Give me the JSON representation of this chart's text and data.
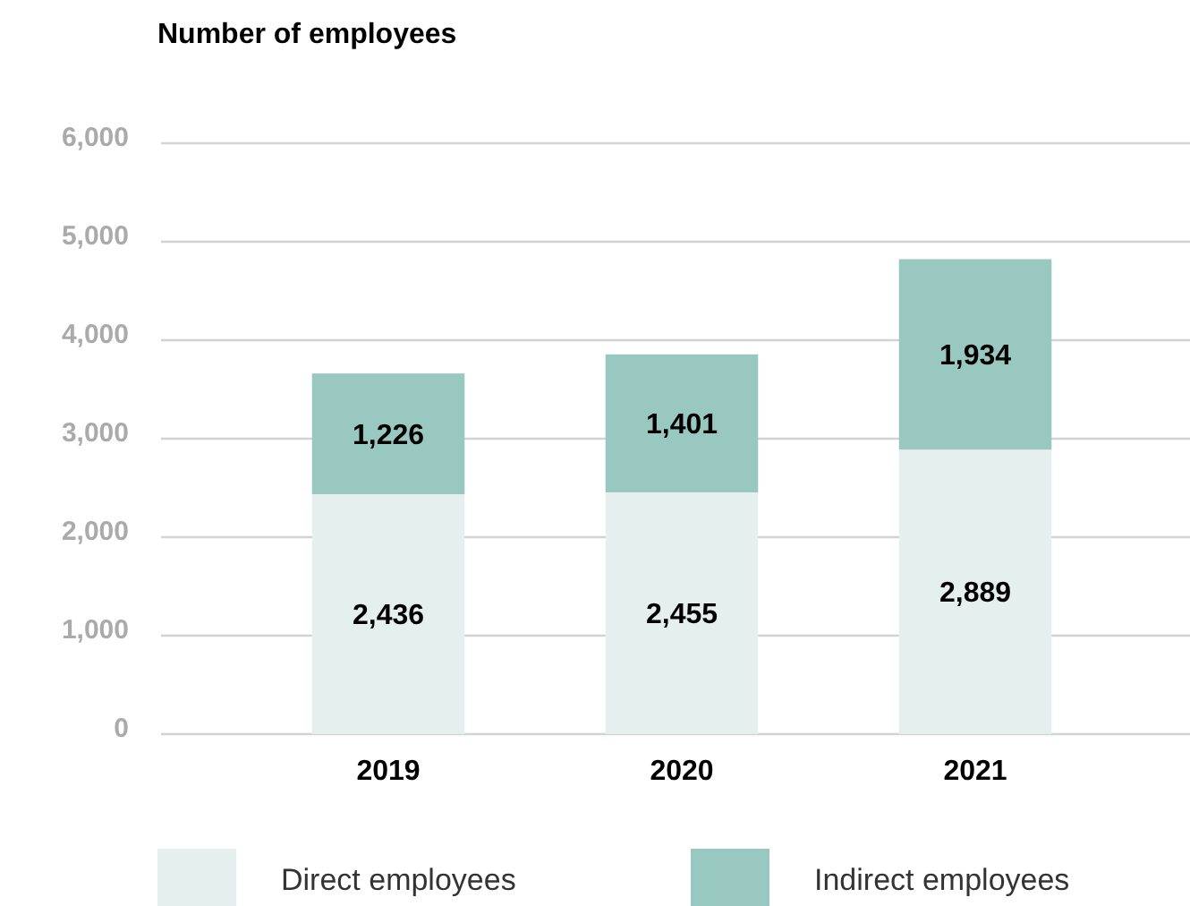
{
  "chart_data": {
    "type": "bar",
    "title": "Number of employees",
    "stacked": true,
    "categories": [
      "2019",
      "2020",
      "2021"
    ],
    "series": [
      {
        "name": "Direct employees",
        "color": "#e5f0ee",
        "values": [
          2436,
          2455,
          2889
        ]
      },
      {
        "name": "Indirect employees",
        "color": "#99c8c1",
        "values": [
          1226,
          1401,
          1934
        ]
      }
    ],
    "value_labels": [
      [
        "2,436",
        "2,455",
        "2,889"
      ],
      [
        "1,226",
        "1,401",
        "1,934"
      ]
    ],
    "ylim": [
      0,
      6000
    ],
    "yticks": [
      {
        "value": 0,
        "label": "0"
      },
      {
        "value": 1000,
        "label": "1,000"
      },
      {
        "value": 2000,
        "label": "2,000"
      },
      {
        "value": 3000,
        "label": "3,000"
      },
      {
        "value": 4000,
        "label": "4,000"
      },
      {
        "value": 5000,
        "label": "5,000"
      },
      {
        "value": 6000,
        "label": "6,000"
      }
    ],
    "grid": "y",
    "legend": "bottom"
  }
}
